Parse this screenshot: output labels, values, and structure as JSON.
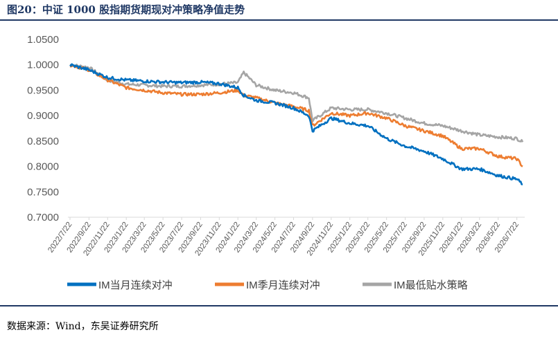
{
  "figure_title": "图20：中证 1000 股指期货期现对冲策略净值走势",
  "source_text": "数据来源：Wind，东吴证券研究所",
  "chart_data": {
    "type": "line",
    "title": "",
    "xlabel": "",
    "ylabel": "",
    "ylim": [
      0.7,
      1.05
    ],
    "yticks": [
      "1.0500",
      "1.0000",
      "0.9500",
      "0.9000",
      "0.8500",
      "0.8000",
      "0.7500",
      "0.7000"
    ],
    "x_tick_labels": [
      "2022/7/22",
      "2022/9/22",
      "2022/11/22",
      "2023/1/22",
      "2023/3/22",
      "2023/5/22",
      "2023/7/22",
      "2023/9/22",
      "2023/11/22",
      "2024/1/22",
      "2024/3/22",
      "2024/5/22",
      "2024/7/22",
      "2024/9/22",
      "2024/11/22",
      "2025/1/22",
      "2025/3/22",
      "2025/5/22",
      "2025/7/22",
      "2025/9/22",
      "2025/11/22",
      "2026/1/22",
      "2026/3/22",
      "2026/5/22",
      "2026/7/22"
    ],
    "grid": false,
    "legend_position": "bottom",
    "series": [
      {
        "name": "IM当月连续对冲",
        "color": "#0070c0",
        "x": [
          "2022/7/22",
          "2022/9/22",
          "2022/11/22",
          "2023/1/22",
          "2023/3/22",
          "2023/5/22",
          "2023/7/22",
          "2023/9/22",
          "2023/11/22",
          "2024/1/22",
          "2024/2/10",
          "2024/3/22",
          "2024/5/22",
          "2024/7/22",
          "2024/9/10",
          "2024/9/22",
          "2024/11/22",
          "2025/1/22",
          "2025/3/22",
          "2025/5/22",
          "2025/7/22",
          "2025/9/22",
          "2025/11/22",
          "2026/1/22",
          "2026/3/22",
          "2026/5/22",
          "2026/7/22",
          "2026/8/10"
        ],
        "values": [
          1.0,
          0.99,
          0.975,
          0.97,
          0.968,
          0.966,
          0.965,
          0.966,
          0.963,
          0.955,
          0.94,
          0.93,
          0.925,
          0.915,
          0.9,
          0.87,
          0.895,
          0.885,
          0.88,
          0.855,
          0.84,
          0.83,
          0.815,
          0.795,
          0.795,
          0.782,
          0.775,
          0.765
        ]
      },
      {
        "name": "IM季月连续对冲",
        "color": "#ed7d31",
        "x": [
          "2022/7/22",
          "2022/9/22",
          "2022/11/22",
          "2023/1/22",
          "2023/3/22",
          "2023/5/22",
          "2023/7/22",
          "2023/9/22",
          "2023/11/22",
          "2024/1/22",
          "2024/2/10",
          "2024/3/22",
          "2024/5/22",
          "2024/7/22",
          "2024/9/10",
          "2024/9/22",
          "2024/11/22",
          "2025/1/22",
          "2025/3/22",
          "2025/5/22",
          "2025/7/22",
          "2025/9/22",
          "2025/11/22",
          "2026/1/22",
          "2026/3/22",
          "2026/5/22",
          "2026/7/22",
          "2026/8/10"
        ],
        "values": [
          1.0,
          0.99,
          0.97,
          0.955,
          0.95,
          0.945,
          0.942,
          0.942,
          0.945,
          0.95,
          0.94,
          0.935,
          0.925,
          0.918,
          0.91,
          0.88,
          0.905,
          0.9,
          0.905,
          0.895,
          0.88,
          0.87,
          0.86,
          0.835,
          0.835,
          0.82,
          0.815,
          0.8
        ]
      },
      {
        "name": "IM最低贴水策略",
        "color": "#a5a5a5",
        "x": [
          "2022/7/22",
          "2022/9/22",
          "2022/11/22",
          "2023/1/22",
          "2023/3/22",
          "2023/5/22",
          "2023/7/22",
          "2023/9/22",
          "2023/11/22",
          "2024/1/22",
          "2024/2/10",
          "2024/3/22",
          "2024/5/22",
          "2024/7/22",
          "2024/9/10",
          "2024/9/22",
          "2024/11/22",
          "2025/1/22",
          "2025/3/22",
          "2025/5/22",
          "2025/7/22",
          "2025/9/22",
          "2025/11/22",
          "2026/1/22",
          "2026/3/22",
          "2026/5/22",
          "2026/7/22",
          "2026/8/10"
        ],
        "values": [
          1.0,
          0.995,
          0.97,
          0.962,
          0.96,
          0.958,
          0.958,
          0.96,
          0.962,
          0.965,
          0.985,
          0.96,
          0.95,
          0.945,
          0.935,
          0.89,
          0.915,
          0.912,
          0.912,
          0.905,
          0.895,
          0.885,
          0.88,
          0.87,
          0.862,
          0.858,
          0.855,
          0.848
        ]
      }
    ]
  }
}
